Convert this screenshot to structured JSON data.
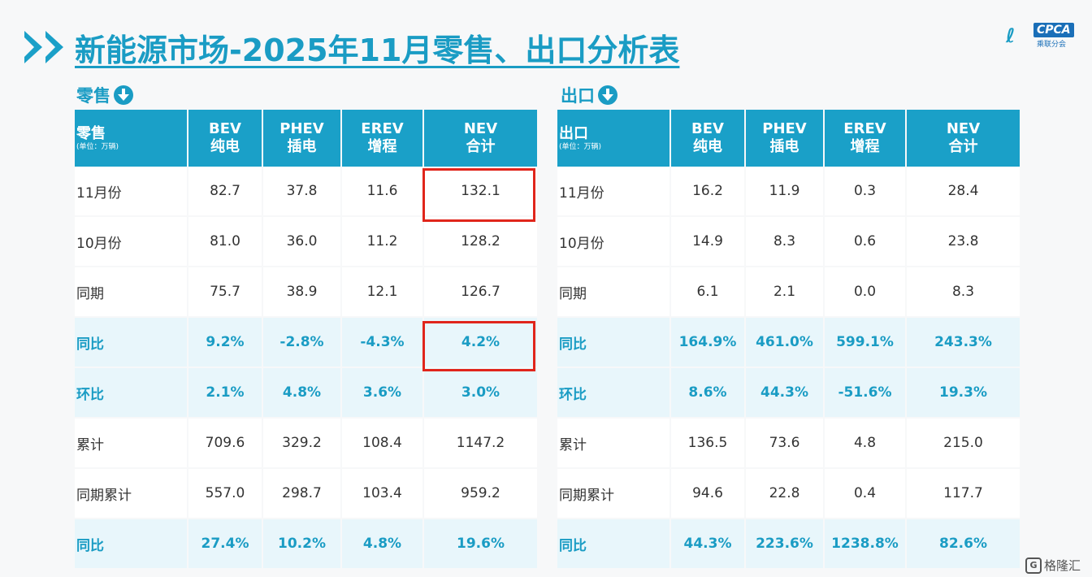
{
  "title": "新能源市场-2025年11月零售、出口分析表",
  "logo": {
    "text": "CPCA",
    "sub": "乘联分会"
  },
  "corner_logo": {
    "icon": "G",
    "text": "格隆汇"
  },
  "accent": "#1aa0c8",
  "highlight_color": "#e0251b",
  "retail": {
    "section_label": "零售",
    "header": {
      "label": "零售",
      "unit": "(单位：万辆)"
    },
    "columns": [
      {
        "code": "BEV",
        "name": "纯电"
      },
      {
        "code": "PHEV",
        "name": "插电"
      },
      {
        "code": "EREV",
        "name": "增程"
      },
      {
        "code": "NEV",
        "name": "合计"
      }
    ],
    "rows": [
      {
        "label": "11月份",
        "values": [
          "82.7",
          "37.8",
          "11.6",
          "132.1"
        ]
      },
      {
        "label": "10月份",
        "values": [
          "81.0",
          "36.0",
          "11.2",
          "128.2"
        ]
      },
      {
        "label": "同期",
        "values": [
          "75.7",
          "38.9",
          "12.1",
          "126.7"
        ]
      },
      {
        "label": "同比",
        "values": [
          "9.2%",
          "-2.8%",
          "-4.3%",
          "4.2%"
        ]
      },
      {
        "label": "环比",
        "values": [
          "2.1%",
          "4.8%",
          "3.6%",
          "3.0%"
        ]
      },
      {
        "label": "累计",
        "values": [
          "709.6",
          "329.2",
          "108.4",
          "1147.2"
        ]
      },
      {
        "label": "同期累计",
        "values": [
          "557.0",
          "298.7",
          "103.4",
          "959.2"
        ]
      },
      {
        "label": "同比",
        "values": [
          "27.4%",
          "10.2%",
          "4.8%",
          "19.6%"
        ]
      }
    ]
  },
  "export": {
    "section_label": "出口",
    "header": {
      "label": "出口",
      "unit": "(单位：万辆)"
    },
    "columns": [
      {
        "code": "BEV",
        "name": "纯电"
      },
      {
        "code": "PHEV",
        "name": "插电"
      },
      {
        "code": "EREV",
        "name": "增程"
      },
      {
        "code": "NEV",
        "name": "合计"
      }
    ],
    "rows": [
      {
        "label": "11月份",
        "values": [
          "16.2",
          "11.9",
          "0.3",
          "28.4"
        ]
      },
      {
        "label": "10月份",
        "values": [
          "14.9",
          "8.3",
          "0.6",
          "23.8"
        ]
      },
      {
        "label": "同期",
        "values": [
          "6.1",
          "2.1",
          "0.0",
          "8.3"
        ]
      },
      {
        "label": "同比",
        "values": [
          "164.9%",
          "461.0%",
          "599.1%",
          "243.3%"
        ]
      },
      {
        "label": "环比",
        "values": [
          "8.6%",
          "44.3%",
          "-51.6%",
          "19.3%"
        ]
      },
      {
        "label": "累计",
        "values": [
          "136.5",
          "73.6",
          "4.8",
          "215.0"
        ]
      },
      {
        "label": "同期累计",
        "values": [
          "94.6",
          "22.8",
          "0.4",
          "117.7"
        ]
      },
      {
        "label": "同比",
        "values": [
          "44.3%",
          "223.6%",
          "1238.8%",
          "82.6%"
        ]
      }
    ]
  }
}
